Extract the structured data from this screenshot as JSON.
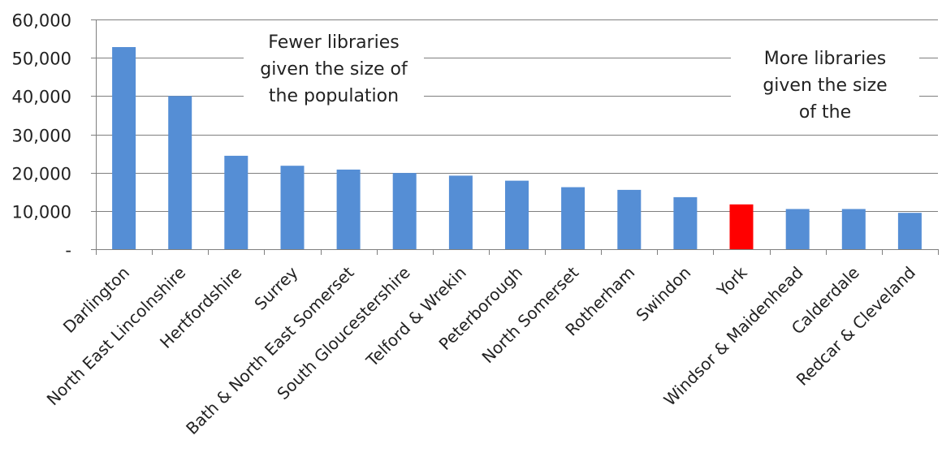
{
  "chart_data": {
    "type": "bar",
    "title": "",
    "xlabel": "",
    "ylabel": "",
    "categories": [
      "Darlington",
      "North East Lincolnshire",
      "Hertfordshire",
      "Surrey",
      "Bath & North East Somerset",
      "South Gloucestershire",
      "Telford & Wrekin",
      "Peterborough",
      "North Somerset",
      "Rotherham",
      "Swindon",
      "York",
      "Windsor & Maidenhead",
      "Calderdale",
      "Redcar & Cleveland"
    ],
    "values": [
      52800,
      40000,
      24400,
      21800,
      20800,
      19900,
      19200,
      17900,
      16200,
      15500,
      13600,
      11700,
      10500,
      10500,
      9500
    ],
    "highlight_category": "York",
    "colors": {
      "bar": "#558ED5",
      "highlight": "#FF0000",
      "grid": "#7F7F7F",
      "axis": "#7F7F7F",
      "text": "#222222"
    },
    "ylim": [
      0,
      60000
    ],
    "yticks": [
      0,
      10000,
      20000,
      30000,
      40000,
      50000,
      60000
    ],
    "ytick_labels": [
      "-",
      "10,000",
      "20,000",
      "30,000",
      "40,000",
      "50,000",
      "60,000"
    ],
    "grid": true,
    "legend": "none",
    "annotations": {
      "left": [
        "Fewer libraries",
        "given the size of",
        "the population"
      ],
      "right": [
        "More libraries",
        "given the size",
        "of the"
      ]
    }
  }
}
